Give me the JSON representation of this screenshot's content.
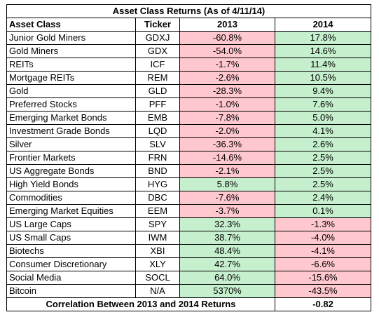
{
  "title": "Asset Class Returns (As of 4/11/14)",
  "headers": {
    "asset_class": "Asset Class",
    "ticker": "Ticker",
    "y2013": "2013",
    "y2014": "2014"
  },
  "colors": {
    "negative": "#ffc7ce",
    "positive": "#c6efce"
  },
  "rows": [
    {
      "asset": "Junior Gold Miners",
      "ticker": "GDXJ",
      "r2013": "-60.8%",
      "r2014": "17.8%"
    },
    {
      "asset": "Gold Miners",
      "ticker": "GDX",
      "r2013": "-54.0%",
      "r2014": "14.6%"
    },
    {
      "asset": "REITs",
      "ticker": "ICF",
      "r2013": "-1.7%",
      "r2014": "11.4%"
    },
    {
      "asset": "Mortgage REITs",
      "ticker": "REM",
      "r2013": "-2.6%",
      "r2014": "10.5%"
    },
    {
      "asset": "Gold",
      "ticker": "GLD",
      "r2013": "-28.3%",
      "r2014": "9.4%"
    },
    {
      "asset": "Preferred Stocks",
      "ticker": "PFF",
      "r2013": "-1.0%",
      "r2014": "7.6%"
    },
    {
      "asset": "Emerging Market Bonds",
      "ticker": "EMB",
      "r2013": "-7.8%",
      "r2014": "5.0%"
    },
    {
      "asset": "Investment Grade Bonds",
      "ticker": "LQD",
      "r2013": "-2.0%",
      "r2014": "4.1%"
    },
    {
      "asset": "Silver",
      "ticker": "SLV",
      "r2013": "-36.3%",
      "r2014": "2.6%"
    },
    {
      "asset": "Frontier Markets",
      "ticker": "FRN",
      "r2013": "-14.6%",
      "r2014": "2.5%"
    },
    {
      "asset": "US Aggregate Bonds",
      "ticker": "BND",
      "r2013": "-2.1%",
      "r2014": "2.5%"
    },
    {
      "asset": "High Yield Bonds",
      "ticker": "HYG",
      "r2013": "5.8%",
      "r2014": "2.5%"
    },
    {
      "asset": "Commodities",
      "ticker": "DBC",
      "r2013": "-7.6%",
      "r2014": "2.4%"
    },
    {
      "asset": "Emerging Market Equities",
      "ticker": "EEM",
      "r2013": "-3.7%",
      "r2014": "0.1%"
    },
    {
      "asset": "US Large Caps",
      "ticker": "SPY",
      "r2013": "32.3%",
      "r2014": "-1.3%"
    },
    {
      "asset": "US Small Caps",
      "ticker": "IWM",
      "r2013": "38.7%",
      "r2014": "-4.0%"
    },
    {
      "asset": "Biotechs",
      "ticker": "XBI",
      "r2013": "48.4%",
      "r2014": "-4.1%"
    },
    {
      "asset": "Consumer Discretionary",
      "ticker": "XLY",
      "r2013": "42.7%",
      "r2014": "-6.6%"
    },
    {
      "asset": "Social Media",
      "ticker": "SOCL",
      "r2013": "64.0%",
      "r2014": "-15.6%"
    },
    {
      "asset": "Bitcoin",
      "ticker": "N/A",
      "r2013": "5370%",
      "r2014": "-43.5%"
    }
  ],
  "footer": {
    "label": "Correlation Between 2013 and 2014 Returns",
    "value": "-0.82"
  }
}
